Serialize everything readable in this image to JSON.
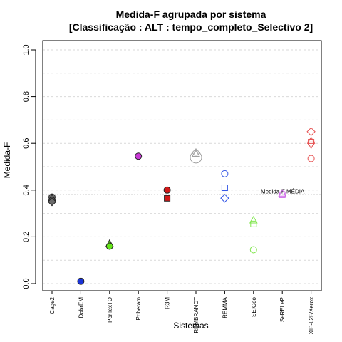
{
  "chart_data": {
    "type": "scatter",
    "title": "Medida-F agrupada por sistema",
    "subtitle": "[Classificação : ALT : tempo_completo_Selectivo 2]",
    "xlabel": "Sistemas",
    "ylabel": "Medida-F",
    "ylim": [
      0,
      1
    ],
    "yticks": [
      "0.0",
      "0.2",
      "0.4",
      "0.6",
      "0.8",
      "1.0"
    ],
    "grid": true,
    "categories": [
      "Cage2",
      "DobrEM",
      "PorTexTO",
      "Priberam",
      "R3M",
      "REMBRANDT",
      "REMMA",
      "SEIGeo",
      "SeRELeP",
      "XIP-L2F/Xerox"
    ],
    "reference_line": {
      "value": 0.38,
      "label": "Medida-F MÉDIA"
    },
    "colors": {
      "Cage2": "#6b6b6b",
      "DobrEM": "#1a33d6",
      "PorTexTO": "#66e61a",
      "Priberam": "#c93ad6",
      "R3M": "#d11a1a",
      "REMBRANDT": "#a0a0a0",
      "REMMA": "#3355e6",
      "SEIGeo": "#80e64d",
      "SeRELeP": "#cc66e6",
      "XIP-L2F/Xerox": "#e65050"
    },
    "points": [
      {
        "system": "Cage2",
        "y": 0.37,
        "marker": "circle",
        "filled": true
      },
      {
        "system": "Cage2",
        "y": 0.365,
        "marker": "triangle",
        "filled": true
      },
      {
        "system": "Cage2",
        "y": 0.35,
        "marker": "diamond",
        "filled": true
      },
      {
        "system": "DobrEM",
        "y": 0.01,
        "marker": "circle",
        "filled": true
      },
      {
        "system": "PorTexTO",
        "y": 0.17,
        "marker": "triangle",
        "filled": true
      },
      {
        "system": "PorTexTO",
        "y": 0.16,
        "marker": "circle",
        "filled": true
      },
      {
        "system": "Priberam",
        "y": 0.545,
        "marker": "circle",
        "filled": true
      },
      {
        "system": "R3M",
        "y": 0.4,
        "marker": "circle",
        "filled": true
      },
      {
        "system": "R3M",
        "y": 0.365,
        "marker": "square",
        "filled": true
      },
      {
        "system": "REMBRANDT",
        "y": 0.56,
        "marker": "diamond",
        "filled": false
      },
      {
        "system": "REMBRANDT",
        "y": 0.555,
        "marker": "triangle",
        "filled": false
      },
      {
        "system": "REMBRANDT",
        "y": 0.54,
        "marker": "circle-large",
        "filled": false
      },
      {
        "system": "REMMA",
        "y": 0.47,
        "marker": "circle",
        "filled": false
      },
      {
        "system": "REMMA",
        "y": 0.41,
        "marker": "square",
        "filled": false
      },
      {
        "system": "REMMA",
        "y": 0.365,
        "marker": "diamond",
        "filled": false
      },
      {
        "system": "SEIGeo",
        "y": 0.27,
        "marker": "triangle",
        "filled": false
      },
      {
        "system": "SEIGeo",
        "y": 0.255,
        "marker": "square",
        "filled": false
      },
      {
        "system": "SEIGeo",
        "y": 0.145,
        "marker": "circle",
        "filled": false
      },
      {
        "system": "SeRELeP",
        "y": 0.385,
        "marker": "triangle",
        "filled": false
      },
      {
        "system": "SeRELeP",
        "y": 0.38,
        "marker": "square",
        "filled": false
      },
      {
        "system": "XIP-L2F/Xerox",
        "y": 0.65,
        "marker": "diamond",
        "filled": false
      },
      {
        "system": "XIP-L2F/Xerox",
        "y": 0.61,
        "marker": "triangle",
        "filled": false
      },
      {
        "system": "XIP-L2F/Xerox",
        "y": 0.605,
        "marker": "square",
        "filled": false
      },
      {
        "system": "XIP-L2F/Xerox",
        "y": 0.595,
        "marker": "triangle-down",
        "filled": false
      },
      {
        "system": "XIP-L2F/Xerox",
        "y": 0.535,
        "marker": "circle",
        "filled": false
      }
    ]
  }
}
